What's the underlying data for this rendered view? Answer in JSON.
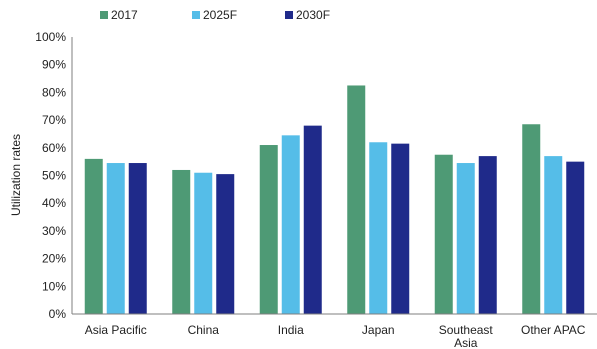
{
  "chart_data": {
    "type": "bar",
    "title": "",
    "xlabel": "",
    "ylabel": "Utilization rates",
    "ylim": [
      0,
      100
    ],
    "ytick_step": 10,
    "ytick_suffix": "%",
    "grid": false,
    "legend_position": "top",
    "categories": [
      [
        "Asia Pacific"
      ],
      [
        "China"
      ],
      [
        "India"
      ],
      [
        "Japan"
      ],
      [
        "Southeast",
        "Asia"
      ],
      [
        "Other APAC"
      ]
    ],
    "series": [
      {
        "name": "2017",
        "color": "#4e9a75",
        "values": [
          56,
          52,
          61,
          82.5,
          57.5,
          68.5
        ]
      },
      {
        "name": "2025F",
        "color": "#55bde8",
        "values": [
          54.5,
          51,
          64.5,
          62,
          54.5,
          57
        ]
      },
      {
        "name": "2030F",
        "color": "#1f2a8a",
        "values": [
          54.5,
          50.5,
          68,
          61.5,
          57,
          55
        ]
      }
    ]
  }
}
